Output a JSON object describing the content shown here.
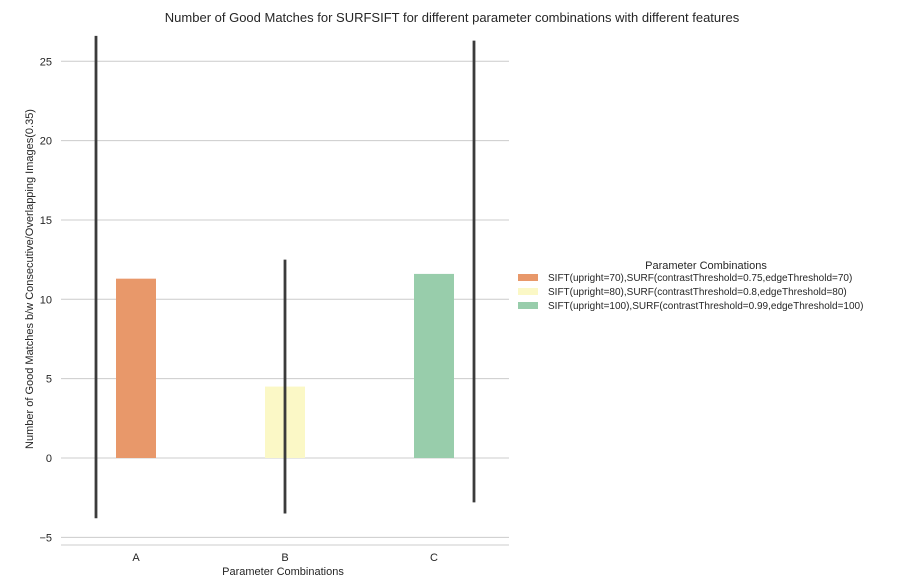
{
  "chart_data": {
    "type": "bar",
    "title": "Number of Good Matches for SURFSIFT for different parameter combinations with different features",
    "xlabel": "Parameter Combinations",
    "ylabel": "Number of Good Matches b/w Consecutive/Overlapping Images(0.35)",
    "categories": [
      "A",
      "B",
      "C"
    ],
    "ylim": [
      -5.5,
      27
    ],
    "yticks": [
      -5,
      0,
      5,
      10,
      15,
      20,
      25
    ],
    "grid": true,
    "legend": {
      "title": "Parameter Combinations",
      "position": "right"
    },
    "series": [
      {
        "name": "SIFT(upright=70),SURF(contrastThreshold=0.75,edgeThreshold=70)",
        "color": "#e8986a",
        "values": [
          11.3,
          null,
          null
        ],
        "error_low": [
          -3.8,
          null,
          null
        ],
        "error_high": [
          26.6,
          null,
          null
        ]
      },
      {
        "name": "SIFT(upright=80),SURF(contrastThreshold=0.8,edgeThreshold=80)",
        "color": "#fbf8c6",
        "values": [
          null,
          4.5,
          null
        ],
        "error_low": [
          null,
          -3.5,
          null
        ],
        "error_high": [
          null,
          12.5,
          null
        ]
      },
      {
        "name": "SIFT(upright=100),SURF(contrastThreshold=0.99,edgeThreshold=100)",
        "color": "#98cdab",
        "values": [
          null,
          null,
          11.6
        ],
        "error_low": [
          null,
          null,
          -2.8
        ],
        "error_high": [
          null,
          null,
          26.3
        ]
      }
    ],
    "errorbar_color": "#3b3b3b",
    "gridline_color": "#cccccc",
    "text_color": "#262626"
  }
}
